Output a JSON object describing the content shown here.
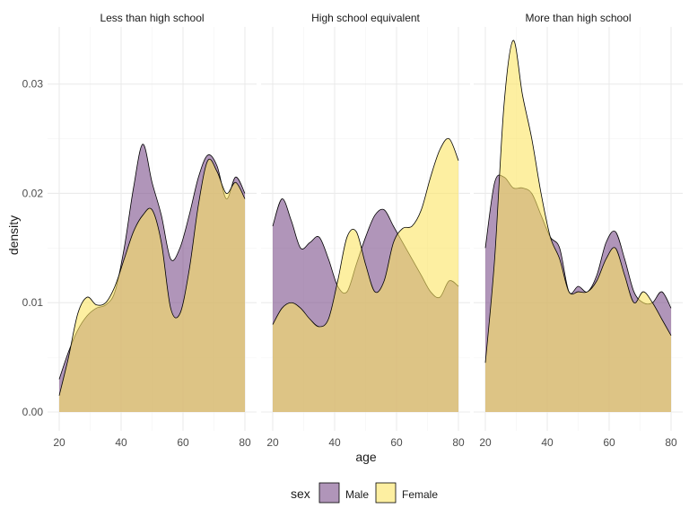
{
  "chart_data": {
    "type": "area",
    "subtype": "density-facets",
    "xlabel": "age",
    "ylabel": "density",
    "xlim": [
      20,
      80
    ],
    "ylim": [
      0,
      0.034
    ],
    "xticks": [
      20,
      40,
      60,
      80
    ],
    "yticks": [
      0.0,
      0.01,
      0.02,
      0.03
    ],
    "ytick_labels": [
      "0.00",
      "0.01",
      "0.02",
      "0.03"
    ],
    "grid": true,
    "legend": {
      "title": "sex",
      "placement": "bottom",
      "entries": [
        {
          "label": "Male",
          "color": "#7b4f8b"
        },
        {
          "label": "Female",
          "color": "#fbe462"
        }
      ]
    },
    "x": [
      20,
      23,
      26,
      29,
      32,
      35,
      38,
      41,
      44,
      47,
      50,
      53,
      56,
      59,
      62,
      65,
      68,
      71,
      74,
      77,
      80
    ],
    "panels": [
      {
        "title": "Less than high school",
        "series": [
          {
            "name": "Male",
            "values": [
              0.003,
              0.0055,
              0.0075,
              0.0088,
              0.0095,
              0.0098,
              0.011,
              0.015,
              0.0205,
              0.0245,
              0.021,
              0.018,
              0.014,
              0.015,
              0.018,
              0.0215,
              0.0235,
              0.0225,
              0.0195,
              0.0215,
              0.02
            ]
          },
          {
            "name": "Female",
            "values": [
              0.0015,
              0.005,
              0.009,
              0.0105,
              0.0098,
              0.01,
              0.0115,
              0.014,
              0.0165,
              0.018,
              0.0185,
              0.0155,
              0.0095,
              0.009,
              0.013,
              0.019,
              0.023,
              0.022,
              0.02,
              0.021,
              0.0195
            ]
          }
        ]
      },
      {
        "title": "High school equivalent",
        "series": [
          {
            "name": "Male",
            "values": [
              0.017,
              0.0195,
              0.0175,
              0.015,
              0.0155,
              0.016,
              0.014,
              0.0115,
              0.011,
              0.0135,
              0.016,
              0.018,
              0.0185,
              0.017,
              0.0155,
              0.014,
              0.0125,
              0.011,
              0.0105,
              0.012,
              0.0115
            ]
          },
          {
            "name": "Female",
            "values": [
              0.008,
              0.0095,
              0.01,
              0.0095,
              0.0085,
              0.0078,
              0.0085,
              0.012,
              0.016,
              0.0165,
              0.0135,
              0.011,
              0.012,
              0.0155,
              0.0168,
              0.017,
              0.0185,
              0.0215,
              0.024,
              0.025,
              0.023
            ]
          }
        ]
      },
      {
        "title": "More than high school",
        "series": [
          {
            "name": "Male",
            "values": [
              0.015,
              0.021,
              0.0215,
              0.0205,
              0.0205,
              0.02,
              0.018,
              0.016,
              0.015,
              0.011,
              0.0115,
              0.011,
              0.0125,
              0.0155,
              0.0165,
              0.014,
              0.011,
              0.01,
              0.01,
              0.011,
              0.0095
            ]
          },
          {
            "name": "Female",
            "values": [
              0.0045,
              0.014,
              0.028,
              0.034,
              0.029,
              0.025,
              0.02,
              0.016,
              0.014,
              0.011,
              0.011,
              0.011,
              0.012,
              0.014,
              0.015,
              0.0125,
              0.01,
              0.011,
              0.01,
              0.0085,
              0.007
            ]
          }
        ]
      }
    ]
  }
}
